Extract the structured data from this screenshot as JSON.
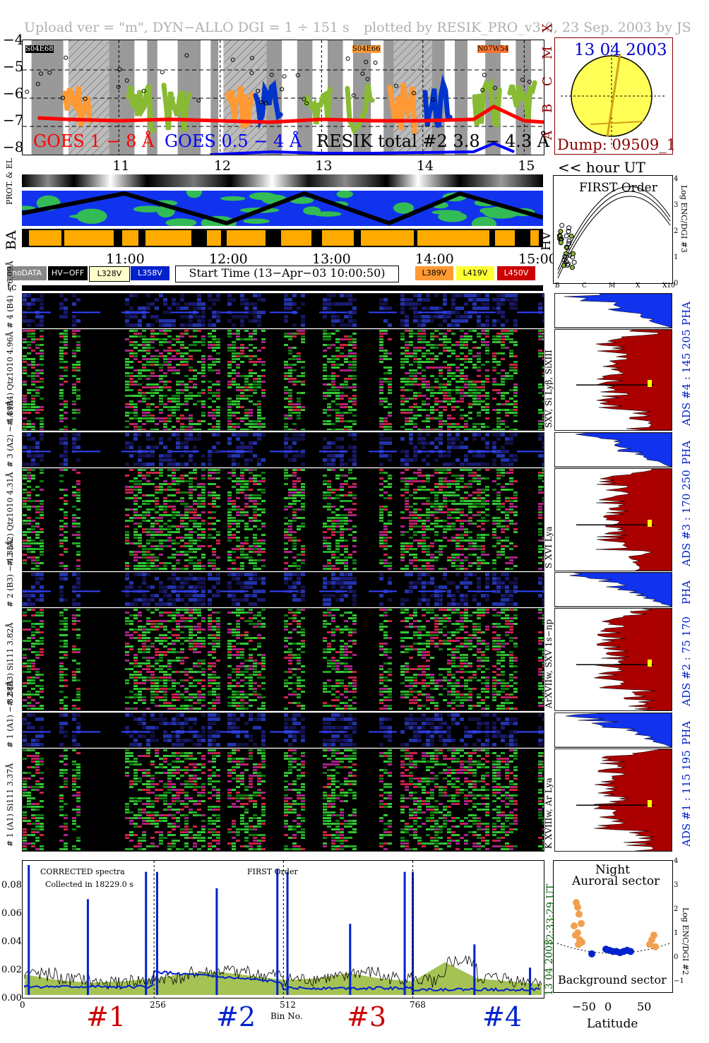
{
  "header": {
    "left": "Upload ver = \"m\", DYN−ALLO DGI =   1 ÷ 151 s",
    "right": "plotted by RESIK_PRO_v3.0, 23 Sep. 2003 by JS"
  },
  "goes": {
    "y_ticks": [
      "−4",
      "−5",
      "−6",
      "−7",
      "−8"
    ],
    "class_letters": [
      "X",
      "M",
      "C",
      "B",
      "A"
    ],
    "legend_goes_long": "GOES 1 − 8 Å",
    "legend_goes_short": "GOES 0.5 − 4 Å",
    "legend_resik": "RESIK total #2  3.8 − 4.3 Å",
    "regions": [
      "S04E68",
      "S04E66",
      "N07W54"
    ],
    "hour_ticks": [
      "11",
      "12",
      "13",
      "14",
      "15"
    ],
    "hour_label": "<< hour UT",
    "colors": {
      "goes_long": "#ff0000",
      "goes_short": "#0000ff",
      "resik": "#000000",
      "accent_orange": "#ff9933",
      "green": "#88bb33"
    }
  },
  "sun": {
    "date": "13 04 2003",
    "dump": "Dump: 09509_1"
  },
  "orbit": {
    "label_prot": "PROT. & EL",
    "label_ba": "BA",
    "label_hv": "HV",
    "time_ticks": [
      "11:00",
      "12:00",
      "13:00",
      "14:00",
      "15:00"
    ]
  },
  "legend": {
    "nodata": "noDATA",
    "hvoff": "HV−OFF",
    "l328": "L328V",
    "l358": "L358V",
    "start_time": "Start Time (13−Apr−03 10:00:50)",
    "l389": "L389V",
    "l419": "L419V",
    "l450": "L450V",
    "tc": "tc"
  },
  "first_order": {
    "title": "FIRST Order",
    "ylabel": "Log ENC/DGI #3",
    "y_ticks": [
      "4",
      "3",
      "2",
      "1",
      "0"
    ],
    "x_ticks": [
      "B",
      "C",
      "M",
      "X",
      "X10"
    ]
  },
  "channels": [
    {
      "pha_label": "# 4 (B4) − 6.09Å",
      "spec_label": "# 4 (B4) Qtz1010 4.96Å",
      "lines": "SXV, Si Lyβ, SiXIII",
      "ads": "ADS #4 :   145 205",
      "pha": "PHA"
    },
    {
      "pha_label": "# 3 (A2) − 4.89Å",
      "spec_label": "# 3 (A2) Qtz1010 4.31Å",
      "lines": "S XVI Lya",
      "ads": "ADS #3 :   170 250",
      "pha": "PHA"
    },
    {
      "pha_label": "# 2 (B3) − 4.33Å",
      "spec_label": "# 2 (B3) Si111 3.82Å",
      "lines": "ArXVIIw, SXV 1s−np",
      "ads": "ADS #2 :   75 170",
      "pha": "PHA"
    },
    {
      "pha_label": "# 1 (A1) − 3.88Å",
      "spec_label": "# 1 (A1) Si111 3.37Å",
      "lines": "K XVIIIw, Ar Lya",
      "ads": "ADS #1 :   115 195",
      "pha": "PHA"
    }
  ],
  "spectra": {
    "note1": "CORRECTED spectra",
    "note2": "Collected in 18229.0 s",
    "note3": "FIRST Order",
    "right_label_time": "12:33:29 UT",
    "right_label_date": "13 04 2003",
    "y_ticks": [
      "0.08",
      "0.06",
      "0.04",
      "0.02",
      "0.00"
    ],
    "x_ticks": [
      "0",
      "256",
      "512",
      "768"
    ],
    "xlabel": "Bin No.",
    "channel_labels": [
      "#1",
      "#2",
      "#3",
      "#4"
    ]
  },
  "auroral": {
    "title1": "Night",
    "title2": "Auroral sector",
    "bottom": "Background sector",
    "xlabel": "Latitude",
    "ylabel": "Log ENC/DGI #2",
    "x_ticks": [
      "−50",
      "0",
      "50"
    ],
    "y_ticks": [
      "4",
      "3",
      "2",
      "1",
      "0",
      "−1"
    ]
  },
  "chart_data": [
    {
      "type": "line",
      "xlabel": "",
      "ylabel": "",
      "x_ticks": [
        "11",
        "12",
        "13",
        "14",
        "15"
      ],
      "ylim": [
        -8,
        -4
      ],
      "series": [
        {
          "name": "GOES 1 − 8 Å",
          "x": [
            10.2,
            10.5,
            11.0,
            11.5,
            12.0,
            12.5,
            13.0,
            13.5,
            14.0,
            14.5,
            14.7,
            15.0,
            15.2
          ],
          "values": [
            -6.7,
            -6.75,
            -6.8,
            -6.75,
            -6.8,
            -6.85,
            -6.75,
            -6.8,
            -6.8,
            -6.75,
            -6.3,
            -6.8,
            -6.85
          ]
        },
        {
          "name": "GOES 0.5 − 4 Å",
          "x": [
            11.9,
            12.5,
            13.0,
            13.5,
            14.5,
            14.7,
            14.9
          ],
          "values": [
            -8.0,
            -7.9,
            -7.95,
            -7.95,
            -7.9,
            -7.6,
            -7.9
          ]
        }
      ]
    },
    {
      "type": "line",
      "x": [
        0,
        64,
        128,
        192,
        256,
        320,
        384,
        448,
        512,
        576,
        640,
        704,
        768,
        832,
        896,
        960,
        1023
      ],
      "series": [
        {
          "values": [
            0.015,
            0.011,
            0.009,
            0.01,
            0.012,
            0.016,
            0.017,
            0.014,
            0.011,
            0.012,
            0.016,
            0.012,
            0.01,
            0.024,
            0.012,
            0.01,
            0.008
          ]
        }
      ],
      "ylim": [
        0,
        0.095
      ],
      "xlabel": "Bin No."
    },
    {
      "type": "scatter",
      "xlabel": "Latitude",
      "ylabel": "Log ENC/DGI #2",
      "xlim": [
        -80,
        80
      ],
      "ylim": [
        -1,
        4
      ],
      "series": [
        {
          "x": [
            -52,
            -50,
            -48,
            -55,
            -45,
            -50,
            -47,
            -53,
            -44,
            -49,
            55,
            58,
            52,
            60
          ],
          "values": [
            2.3,
            2.1,
            1.8,
            1.3,
            1.4,
            1.0,
            0.7,
            0.9,
            0.6,
            0.5,
            0.7,
            0.9,
            0.5,
            0.4
          ]
        },
        {
          "x": [
            -30,
            -10,
            -5,
            0,
            5,
            10,
            15,
            20,
            25
          ],
          "values": [
            0.1,
            0.3,
            0.25,
            0.2,
            0.2,
            0.15,
            0.2,
            0.25,
            0.2
          ]
        }
      ]
    }
  ]
}
